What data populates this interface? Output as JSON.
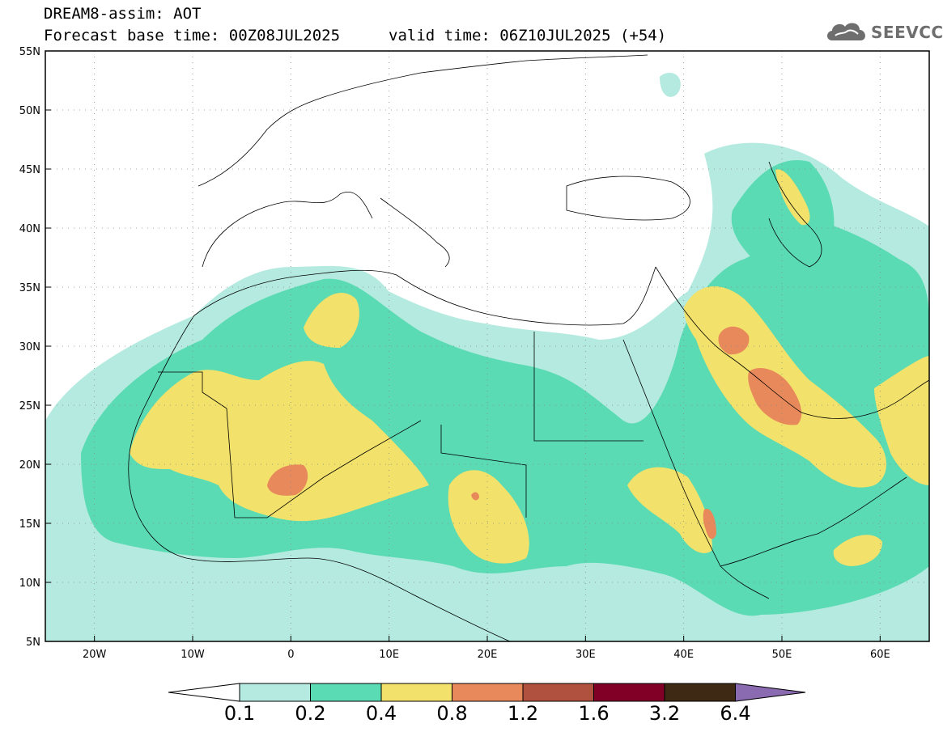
{
  "header": {
    "line1": "DREAM8-assim: AOT",
    "line2_left": "Forecast base time: 00Z08JUL2025",
    "line2_right": "valid time: 06Z10JUL2025 (+54)",
    "logo_text": "SEEVCCC",
    "logo_icon": "cloud-icon"
  },
  "map": {
    "lon_ticks": [
      "20W",
      "10W",
      "0",
      "10E",
      "20E",
      "30E",
      "40E",
      "50E",
      "60E"
    ],
    "lat_ticks": [
      "55N",
      "50N",
      "45N",
      "40N",
      "35N",
      "30N",
      "25N",
      "20N",
      "15N",
      "10N",
      "5N"
    ],
    "extent": {
      "lon": [
        -25,
        65
      ],
      "lat": [
        5,
        55
      ]
    },
    "grid": "dotted"
  },
  "colorbar": {
    "labels": [
      "0.1",
      "0.2",
      "0.4",
      "0.8",
      "1.2",
      "1.6",
      "3.2",
      "6.4"
    ],
    "colors": [
      "#b4eadf",
      "#5bdbb3",
      "#f2e16a",
      "#e8895b",
      "#b0503e",
      "#800026",
      "#3e2a14",
      "#8a6ab0"
    ],
    "under_color": "#ffffff"
  },
  "legend_levels": {
    "c1": "#b4eadf",
    "c2": "#5bdbb3",
    "c3": "#f2e16a",
    "c4": "#e8895b",
    "c5": "#b0503e"
  }
}
